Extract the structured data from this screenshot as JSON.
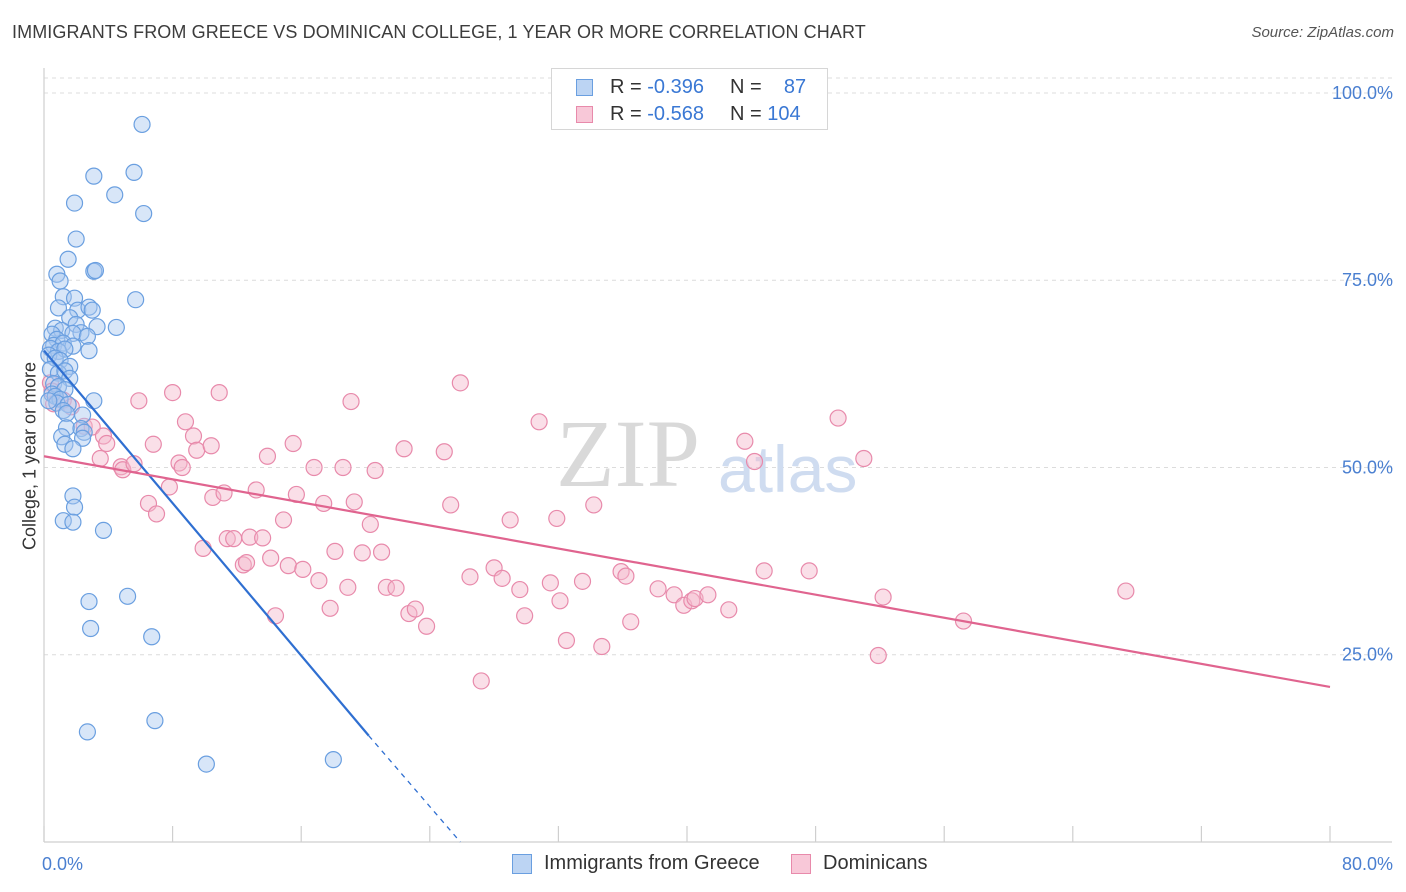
{
  "header": {
    "title": "IMMIGRANTS FROM GREECE VS DOMINICAN COLLEGE, 1 YEAR OR MORE CORRELATION CHART",
    "source": "Source: ZipAtlas.com"
  },
  "watermark": {
    "zip": "ZIP",
    "atlas": "atlas"
  },
  "legend": {
    "rows": [
      {
        "r_label": "R = ",
        "r_value": "-0.396",
        "n_label": "N = ",
        "n_value": "87"
      },
      {
        "r_label": "R = ",
        "r_value": "-0.568",
        "n_label": "N = ",
        "n_value": "104"
      }
    ]
  },
  "bottom_legend": [
    {
      "label": "Immigrants from Greece"
    },
    {
      "label": "Dominicans"
    }
  ],
  "colors": {
    "blue_fill": "#a9c8f0",
    "blue_stroke": "#6a9fe0",
    "blue_line": "#2f6fd1",
    "pink_fill": "#f5b8cc",
    "pink_stroke": "#e88aab",
    "pink_line": "#e0648f",
    "grid": "#dcdcdc",
    "tick_label": "#4a7fd0"
  },
  "chart_data": {
    "type": "scatter",
    "title": "IMMIGRANTS FROM GREECE VS DOMINICAN COLLEGE, 1 YEAR OR MORE CORRELATION CHART",
    "xlabel": "",
    "ylabel": "College, 1 year or more",
    "xlim": [
      0,
      80
    ],
    "ylim": [
      0,
      102
    ],
    "x_tick_labels": [
      "0.0%",
      "80.0%"
    ],
    "y_ticks": [
      25,
      50,
      75,
      100
    ],
    "y_tick_labels": [
      "25.0%",
      "50.0%",
      "75.0%",
      "100.0%"
    ],
    "grid": true,
    "legend_position": "top-center",
    "series": [
      {
        "name": "Immigrants from Greece",
        "color": "#6a9fe0",
        "trend": {
          "x": [
            0,
            20.2
          ],
          "y": [
            65.6,
            14.2
          ],
          "dashed_to": [
            25.9,
            0
          ]
        },
        "points": [
          [
            6.1,
            95.8
          ],
          [
            3.1,
            88.9
          ],
          [
            5.6,
            89.4
          ],
          [
            4.4,
            86.4
          ],
          [
            1.9,
            85.3
          ],
          [
            6.2,
            83.9
          ],
          [
            2.0,
            80.5
          ],
          [
            1.5,
            77.8
          ],
          [
            3.1,
            76.2
          ],
          [
            3.2,
            76.3
          ],
          [
            0.8,
            75.8
          ],
          [
            1.0,
            74.9
          ],
          [
            1.2,
            72.8
          ],
          [
            1.9,
            72.6
          ],
          [
            5.7,
            72.4
          ],
          [
            0.9,
            71.3
          ],
          [
            2.1,
            71.0
          ],
          [
            2.8,
            71.4
          ],
          [
            3.0,
            71.0
          ],
          [
            1.6,
            70.0
          ],
          [
            2.0,
            69.1
          ],
          [
            3.3,
            68.8
          ],
          [
            0.7,
            68.6
          ],
          [
            1.1,
            68.3
          ],
          [
            2.3,
            68.0
          ],
          [
            1.8,
            67.9
          ],
          [
            2.7,
            67.5
          ],
          [
            4.5,
            68.7
          ],
          [
            0.5,
            67.8
          ],
          [
            0.8,
            67.1
          ],
          [
            0.6,
            66.3
          ],
          [
            1.2,
            66.6
          ],
          [
            1.8,
            66.2
          ],
          [
            0.4,
            65.9
          ],
          [
            0.9,
            65.5
          ],
          [
            1.3,
            65.8
          ],
          [
            2.8,
            65.6
          ],
          [
            0.3,
            65.0
          ],
          [
            0.7,
            64.6
          ],
          [
            1.0,
            64.3
          ],
          [
            1.6,
            63.5
          ],
          [
            0.4,
            63.1
          ],
          [
            0.9,
            62.6
          ],
          [
            1.3,
            62.9
          ],
          [
            1.6,
            61.9
          ],
          [
            0.6,
            61.2
          ],
          [
            0.9,
            60.8
          ],
          [
            1.3,
            60.4
          ],
          [
            0.5,
            59.8
          ],
          [
            0.7,
            59.5
          ],
          [
            1.0,
            59.1
          ],
          [
            0.8,
            58.6
          ],
          [
            0.3,
            58.9
          ],
          [
            1.5,
            58.4
          ],
          [
            3.1,
            58.9
          ],
          [
            1.2,
            57.6
          ],
          [
            1.4,
            57.2
          ],
          [
            2.4,
            57.0
          ],
          [
            1.4,
            55.3
          ],
          [
            2.3,
            55.2
          ],
          [
            2.5,
            54.7
          ],
          [
            1.1,
            54.1
          ],
          [
            2.4,
            53.9
          ],
          [
            1.3,
            53.1
          ],
          [
            1.8,
            52.5
          ],
          [
            1.8,
            46.2
          ],
          [
            1.9,
            44.7
          ],
          [
            1.2,
            42.9
          ],
          [
            1.8,
            42.7
          ],
          [
            3.7,
            41.6
          ],
          [
            5.2,
            32.8
          ],
          [
            2.8,
            32.1
          ],
          [
            2.9,
            28.5
          ],
          [
            6.7,
            27.4
          ],
          [
            6.9,
            16.2
          ],
          [
            2.7,
            14.7
          ],
          [
            10.1,
            10.4
          ],
          [
            18.0,
            11.0
          ]
        ]
      },
      {
        "name": "Dominicans",
        "color": "#e88aab",
        "trend": {
          "x": [
            0,
            80
          ],
          "y": [
            51.5,
            20.7
          ]
        },
        "points": [
          [
            0.4,
            61.3
          ],
          [
            0.5,
            60.2
          ],
          [
            0.6,
            58.5
          ],
          [
            1.2,
            59.0
          ],
          [
            1.7,
            58.1
          ],
          [
            2.5,
            55.5
          ],
          [
            3.0,
            55.4
          ],
          [
            3.7,
            54.2
          ],
          [
            3.9,
            53.2
          ],
          [
            3.5,
            51.2
          ],
          [
            4.8,
            50.1
          ],
          [
            4.9,
            49.7
          ],
          [
            5.6,
            50.5
          ],
          [
            5.9,
            58.9
          ],
          [
            6.5,
            45.2
          ],
          [
            6.8,
            53.1
          ],
          [
            7.0,
            43.8
          ],
          [
            7.8,
            47.4
          ],
          [
            8.0,
            60.0
          ],
          [
            8.4,
            50.6
          ],
          [
            8.6,
            50.0
          ],
          [
            8.8,
            56.1
          ],
          [
            9.3,
            54.2
          ],
          [
            9.5,
            52.3
          ],
          [
            9.9,
            39.2
          ],
          [
            10.4,
            52.9
          ],
          [
            10.5,
            46.0
          ],
          [
            10.9,
            60.0
          ],
          [
            11.2,
            46.6
          ],
          [
            11.4,
            40.5
          ],
          [
            11.8,
            40.5
          ],
          [
            12.4,
            37.0
          ],
          [
            12.6,
            37.3
          ],
          [
            12.8,
            40.7
          ],
          [
            13.2,
            47.0
          ],
          [
            13.6,
            40.6
          ],
          [
            13.9,
            51.5
          ],
          [
            14.1,
            37.9
          ],
          [
            14.4,
            30.2
          ],
          [
            14.9,
            43.0
          ],
          [
            15.2,
            36.9
          ],
          [
            15.5,
            53.2
          ],
          [
            15.7,
            46.4
          ],
          [
            16.1,
            36.4
          ],
          [
            16.8,
            50.0
          ],
          [
            17.1,
            34.9
          ],
          [
            17.4,
            45.2
          ],
          [
            17.8,
            31.2
          ],
          [
            18.1,
            38.8
          ],
          [
            18.6,
            50.0
          ],
          [
            18.9,
            34.0
          ],
          [
            19.1,
            58.8
          ],
          [
            19.3,
            45.4
          ],
          [
            19.8,
            38.6
          ],
          [
            20.3,
            42.4
          ],
          [
            20.6,
            49.6
          ],
          [
            21.0,
            38.7
          ],
          [
            21.3,
            34.0
          ],
          [
            21.9,
            33.9
          ],
          [
            22.4,
            52.5
          ],
          [
            22.7,
            30.5
          ],
          [
            23.1,
            31.1
          ],
          [
            23.8,
            28.8
          ],
          [
            24.9,
            52.1
          ],
          [
            25.3,
            45.0
          ],
          [
            25.9,
            61.3
          ],
          [
            26.5,
            35.4
          ],
          [
            27.2,
            21.5
          ],
          [
            28.0,
            36.6
          ],
          [
            28.5,
            35.2
          ],
          [
            29.0,
            43.0
          ],
          [
            29.6,
            33.7
          ],
          [
            29.9,
            30.2
          ],
          [
            30.8,
            56.1
          ],
          [
            31.5,
            34.6
          ],
          [
            31.9,
            43.2
          ],
          [
            32.1,
            32.2
          ],
          [
            32.5,
            26.9
          ],
          [
            33.5,
            34.8
          ],
          [
            34.2,
            45.0
          ],
          [
            34.7,
            26.1
          ],
          [
            35.9,
            36.1
          ],
          [
            36.2,
            35.5
          ],
          [
            36.5,
            29.4
          ],
          [
            38.2,
            33.8
          ],
          [
            39.2,
            33.0
          ],
          [
            39.8,
            31.6
          ],
          [
            40.3,
            32.2
          ],
          [
            40.5,
            32.5
          ],
          [
            41.3,
            33.0
          ],
          [
            42.6,
            31.0
          ],
          [
            43.6,
            53.5
          ],
          [
            44.2,
            50.8
          ],
          [
            44.8,
            36.2
          ],
          [
            47.6,
            36.2
          ],
          [
            49.4,
            56.6
          ],
          [
            51.0,
            51.2
          ],
          [
            51.9,
            24.9
          ],
          [
            52.2,
            32.7
          ],
          [
            57.2,
            29.5
          ],
          [
            67.3,
            33.5
          ]
        ]
      }
    ]
  }
}
